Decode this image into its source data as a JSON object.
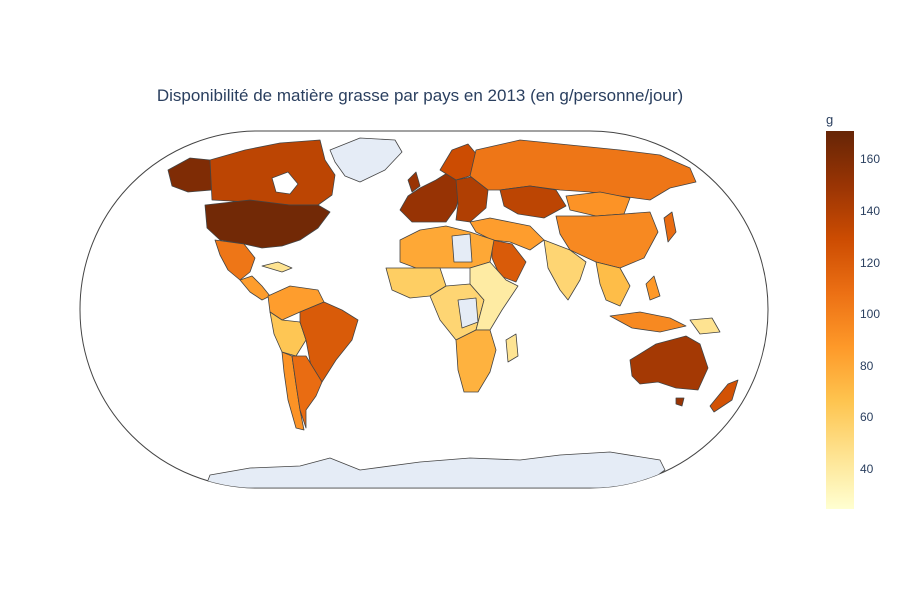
{
  "title": "Disponibilité de matière grasse par pays en 2013 (en g/personne/jour)",
  "colorbar": {
    "title": "g",
    "ticks": [
      "160",
      "140",
      "120",
      "100",
      "80",
      "60",
      "40"
    ],
    "range": [
      25,
      170
    ],
    "colorscale": [
      "#ffffd1",
      "#fee391",
      "#fec44f",
      "#fe9929",
      "#ec7014",
      "#cc4c02",
      "#993404",
      "#662506"
    ]
  },
  "colors": {
    "no_data": "#e5ecf6",
    "country_border": "#444444",
    "frame_border": "#444444"
  },
  "map": {
    "projection": "natural earth",
    "regions": [
      {
        "name": "Canada",
        "level": 135
      },
      {
        "name": "USA",
        "level": 165
      },
      {
        "name": "Alaska",
        "level": 160
      },
      {
        "name": "Mexique",
        "level": 105
      },
      {
        "name": "Amérique centrale",
        "level": 85
      },
      {
        "name": "Venezuela / Colombie",
        "level": 85
      },
      {
        "name": "Brésil",
        "level": 120
      },
      {
        "name": "Argentine",
        "level": 110
      },
      {
        "name": "Chili",
        "level": 90
      },
      {
        "name": "Pérou / Bolivie",
        "level": 65
      },
      {
        "name": "Europe de l'Ouest",
        "level": 150
      },
      {
        "name": "Europe de l'Est",
        "level": 140
      },
      {
        "name": "Russie",
        "level": 105
      },
      {
        "name": "Kazakhstan",
        "level": 135
      },
      {
        "name": "Afrique du Nord",
        "level": 80
      },
      {
        "name": "Afrique de l'Ouest",
        "level": 60
      },
      {
        "name": "Afrique centrale",
        "level": 55
      },
      {
        "name": "Afrique de l'Est",
        "level": 40
      },
      {
        "name": "Afrique australe",
        "level": 75
      },
      {
        "name": "Madagascar",
        "level": 45
      },
      {
        "name": "Moyen-Orient",
        "level": 85
      },
      {
        "name": "Arabie saoudite",
        "level": 120
      },
      {
        "name": "Inde",
        "level": 55
      },
      {
        "name": "Chine",
        "level": 95
      },
      {
        "name": "Mongolie",
        "level": 90
      },
      {
        "name": "Asie du Sud-Est",
        "level": 70
      },
      {
        "name": "Indonésie",
        "level": 95
      },
      {
        "name": "Japon",
        "level": 110
      },
      {
        "name": "Australie",
        "level": 145
      },
      {
        "name": "Nouvelle-Zélande",
        "level": 125
      }
    ]
  }
}
